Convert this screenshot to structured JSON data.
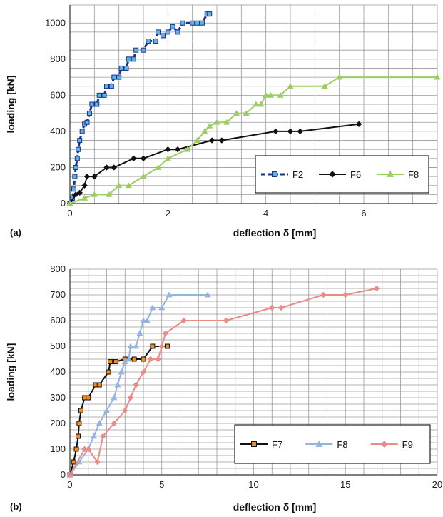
{
  "chart_data": [
    {
      "type": "line",
      "panel_label": "(a)",
      "xlabel": "deflection δ [mm]",
      "ylabel": "loading [kN]",
      "xlim": [
        0,
        7.5
      ],
      "ylim": [
        0,
        1100
      ],
      "x_ticks": [
        0,
        2,
        4,
        6
      ],
      "y_ticks": [
        0,
        200,
        400,
        600,
        800,
        1000
      ],
      "grid": true,
      "legend_placement": "bottom-right",
      "series": [
        {
          "name": "F2",
          "color": "#1f2f8c",
          "marker_color": "#5ab4e0",
          "marker": "square",
          "dashed": true,
          "points": [
            [
              0,
              0
            ],
            [
              0.05,
              30
            ],
            [
              0.08,
              80
            ],
            [
              0.1,
              150
            ],
            [
              0.12,
              200
            ],
            [
              0.15,
              250
            ],
            [
              0.17,
              300
            ],
            [
              0.2,
              350
            ],
            [
              0.25,
              400
            ],
            [
              0.3,
              440
            ],
            [
              0.35,
              450
            ],
            [
              0.4,
              500
            ],
            [
              0.45,
              550
            ],
            [
              0.55,
              550
            ],
            [
              0.6,
              600
            ],
            [
              0.7,
              600
            ],
            [
              0.75,
              650
            ],
            [
              0.85,
              650
            ],
            [
              0.9,
              700
            ],
            [
              1.0,
              700
            ],
            [
              1.05,
              750
            ],
            [
              1.15,
              750
            ],
            [
              1.2,
              800
            ],
            [
              1.3,
              800
            ],
            [
              1.35,
              850
            ],
            [
              1.5,
              850
            ],
            [
              1.6,
              900
            ],
            [
              1.75,
              900
            ],
            [
              1.8,
              950
            ],
            [
              1.9,
              930
            ],
            [
              2.0,
              950
            ],
            [
              2.1,
              980
            ],
            [
              2.2,
              950
            ],
            [
              2.3,
              1000
            ],
            [
              2.5,
              1000
            ],
            [
              2.6,
              1000
            ],
            [
              2.7,
              1000
            ],
            [
              2.8,
              1050
            ],
            [
              2.85,
              1050
            ]
          ]
        },
        {
          "name": "F6",
          "color": "#111111",
          "marker_color": "#111111",
          "marker": "diamond",
          "dashed": false,
          "points": [
            [
              0,
              0
            ],
            [
              0.12,
              50
            ],
            [
              0.2,
              60
            ],
            [
              0.3,
              100
            ],
            [
              0.35,
              150
            ],
            [
              0.5,
              150
            ],
            [
              0.75,
              200
            ],
            [
              0.9,
              200
            ],
            [
              1.3,
              250
            ],
            [
              1.5,
              250
            ],
            [
              2.0,
              300
            ],
            [
              2.2,
              300
            ],
            [
              2.9,
              350
            ],
            [
              3.1,
              350
            ],
            [
              4.2,
              400
            ],
            [
              4.5,
              400
            ],
            [
              4.7,
              400
            ],
            [
              5.9,
              440
            ]
          ]
        },
        {
          "name": "F8",
          "color": "#9ccc62",
          "marker_color": "#9ccc62",
          "marker": "triangle",
          "dashed": false,
          "points": [
            [
              0,
              0
            ],
            [
              0.3,
              30
            ],
            [
              0.5,
              50
            ],
            [
              0.8,
              50
            ],
            [
              1.0,
              100
            ],
            [
              1.2,
              100
            ],
            [
              1.5,
              150
            ],
            [
              1.8,
              200
            ],
            [
              2.0,
              250
            ],
            [
              2.4,
              300
            ],
            [
              2.6,
              350
            ],
            [
              2.75,
              400
            ],
            [
              2.85,
              430
            ],
            [
              3.0,
              450
            ],
            [
              3.2,
              450
            ],
            [
              3.4,
              500
            ],
            [
              3.6,
              500
            ],
            [
              3.8,
              550
            ],
            [
              3.9,
              550
            ],
            [
              4.0,
              600
            ],
            [
              4.1,
              600
            ],
            [
              4.3,
              600
            ],
            [
              4.5,
              650
            ],
            [
              5.2,
              650
            ],
            [
              5.5,
              700
            ],
            [
              7.5,
              700
            ]
          ]
        }
      ]
    },
    {
      "type": "line",
      "panel_label": "(b)",
      "xlabel": "deflection δ [mm]",
      "ylabel": "loading [kN]",
      "xlim": [
        0,
        20
      ],
      "ylim": [
        0,
        800
      ],
      "x_ticks": [
        0,
        5,
        10,
        15,
        20
      ],
      "y_ticks": [
        0,
        100,
        200,
        300,
        400,
        500,
        600,
        700,
        800
      ],
      "grid": true,
      "legend_placement": "bottom-right",
      "series": [
        {
          "name": "F7",
          "color": "#111111",
          "marker_color": "#f28c1e",
          "marker": "square",
          "dashed": false,
          "points": [
            [
              0,
              0
            ],
            [
              0.2,
              50
            ],
            [
              0.35,
              100
            ],
            [
              0.45,
              150
            ],
            [
              0.5,
              200
            ],
            [
              0.6,
              250
            ],
            [
              0.8,
              300
            ],
            [
              1.0,
              300
            ],
            [
              1.4,
              350
            ],
            [
              1.6,
              350
            ],
            [
              2.1,
              400
            ],
            [
              2.2,
              440
            ],
            [
              2.5,
              440
            ],
            [
              3.0,
              450
            ],
            [
              3.5,
              450
            ],
            [
              4.0,
              450
            ],
            [
              4.5,
              500
            ],
            [
              5.3,
              500
            ]
          ]
        },
        {
          "name": "F8",
          "color": "#95b3df",
          "marker_color": "#95b3df",
          "marker": "triangle",
          "dashed": false,
          "points": [
            [
              0,
              0
            ],
            [
              0.5,
              50
            ],
            [
              1.0,
              100
            ],
            [
              1.3,
              150
            ],
            [
              1.6,
              200
            ],
            [
              2.0,
              250
            ],
            [
              2.4,
              300
            ],
            [
              2.6,
              350
            ],
            [
              2.8,
              400
            ],
            [
              3.0,
              440
            ],
            [
              3.2,
              450
            ],
            [
              3.3,
              500
            ],
            [
              3.6,
              500
            ],
            [
              3.8,
              550
            ],
            [
              4.0,
              600
            ],
            [
              4.2,
              600
            ],
            [
              4.5,
              650
            ],
            [
              5.0,
              650
            ],
            [
              5.4,
              700
            ],
            [
              7.5,
              700
            ]
          ]
        },
        {
          "name": "F9",
          "color": "#e88c88",
          "marker_color": "#e88c88",
          "marker": "diamond",
          "dashed": false,
          "points": [
            [
              0,
              0
            ],
            [
              0.8,
              100
            ],
            [
              1.0,
              100
            ],
            [
              1.5,
              50
            ],
            [
              1.8,
              150
            ],
            [
              2.4,
              200
            ],
            [
              3.0,
              250
            ],
            [
              3.3,
              300
            ],
            [
              3.6,
              350
            ],
            [
              4.0,
              400
            ],
            [
              4.4,
              450
            ],
            [
              4.8,
              450
            ],
            [
              5.0,
              500
            ],
            [
              5.2,
              550
            ],
            [
              6.2,
              600
            ],
            [
              8.5,
              600
            ],
            [
              11.0,
              650
            ],
            [
              11.5,
              650
            ],
            [
              13.8,
              700
            ],
            [
              15.0,
              700
            ],
            [
              16.7,
              725
            ]
          ]
        }
      ]
    }
  ]
}
